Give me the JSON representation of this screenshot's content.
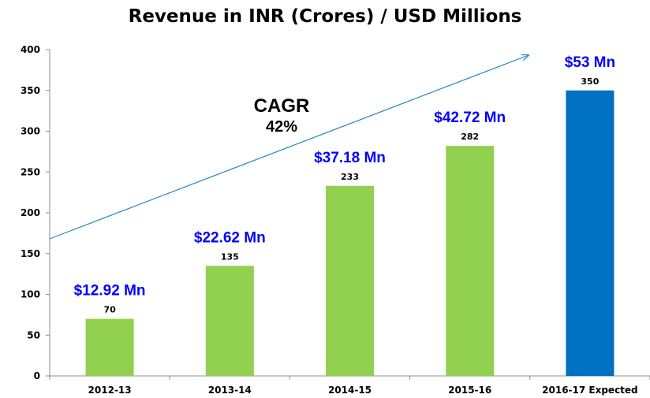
{
  "chart_data": {
    "type": "bar",
    "title": "Revenue in INR (Crores)  / USD Millions",
    "xlabel": "",
    "ylabel": "",
    "ylim": [
      0,
      400
    ],
    "yticks": [
      0,
      50,
      100,
      150,
      200,
      250,
      300,
      350,
      400
    ],
    "categories": [
      "2012-13",
      "2013-14",
      "2014-15",
      "2015-16",
      "2016-17 Expected"
    ],
    "values": [
      70,
      135,
      233,
      282,
      350
    ],
    "data_labels": [
      "70",
      "135",
      "233",
      "282",
      "350"
    ],
    "usd_labels": [
      "$12.92 Mn",
      "$22.62 Mn",
      "$37.18 Mn",
      "$42.72 Mn",
      "$53 Mn"
    ],
    "bar_colors": [
      "#92d050",
      "#92d050",
      "#92d050",
      "#92d050",
      "#0070c0"
    ],
    "usd_label_color": "#0000ff",
    "trend_line_color": "#2e8bc0",
    "grid": false,
    "annotation": {
      "label": "CAGR",
      "value": "42%"
    }
  }
}
